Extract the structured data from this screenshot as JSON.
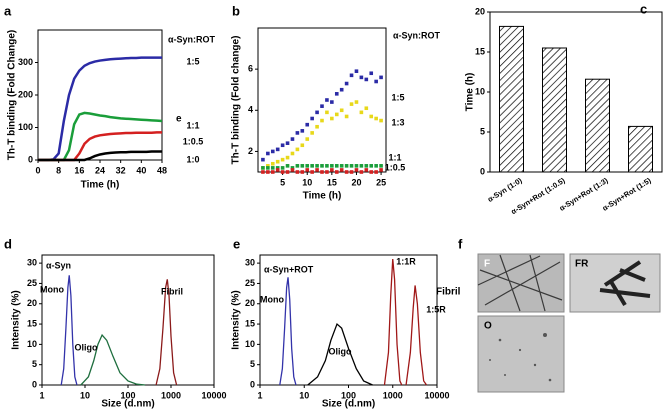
{
  "chart_data": [
    {
      "panel": "a",
      "type": "line",
      "title": "α-Syn:ROT",
      "x_label": "Time (h)",
      "y_label": "Th-T binding (Fold Change)",
      "x": [
        0,
        2,
        4,
        6,
        8,
        10,
        12,
        14,
        16,
        18,
        20,
        22,
        24,
        26,
        28,
        30,
        32,
        34,
        36,
        38,
        40,
        42,
        44,
        46,
        48
      ],
      "xlim": [
        0,
        48
      ],
      "xticks": [
        0,
        8,
        16,
        24,
        32,
        40,
        48
      ],
      "ylim": [
        0,
        400
      ],
      "yticks": [
        0,
        100,
        200,
        300
      ],
      "annotations": [
        "e"
      ],
      "series": [
        {
          "name": "1:5",
          "color": "#2b2ba6",
          "values": [
            0,
            0,
            0,
            2,
            20,
            120,
            200,
            250,
            275,
            290,
            298,
            303,
            306,
            308,
            310,
            311,
            312,
            313,
            314,
            314,
            315,
            315,
            315,
            315,
            315
          ]
        },
        {
          "name": "1:1",
          "color": "#1a9e3a",
          "values": [
            0,
            0,
            0,
            0,
            0,
            0,
            30,
            110,
            140,
            145,
            143,
            140,
            137,
            135,
            132,
            130,
            128,
            127,
            126,
            125,
            124,
            123,
            122,
            121,
            120
          ]
        },
        {
          "name": "1:0.5",
          "color": "#d42020",
          "values": [
            0,
            0,
            0,
            0,
            0,
            0,
            0,
            0,
            20,
            50,
            65,
            72,
            76,
            78,
            80,
            81,
            82,
            83,
            83,
            84,
            84,
            84,
            84,
            85,
            85
          ]
        },
        {
          "name": "1:0",
          "color": "#000000",
          "values": [
            0,
            0,
            0,
            0,
            0,
            0,
            0,
            0,
            0,
            0,
            5,
            12,
            17,
            20,
            22,
            23,
            24,
            24,
            25,
            25,
            25,
            25,
            26,
            26,
            26
          ]
        }
      ]
    },
    {
      "panel": "b",
      "type": "scatter",
      "title": "α-Syn:ROT",
      "x_label": "Time (h)",
      "y_label": "Th-T binding (Fold change)",
      "x": [
        1,
        2,
        3,
        4,
        5,
        6,
        7,
        8,
        9,
        10,
        11,
        12,
        13,
        14,
        15,
        16,
        17,
        18,
        19,
        20,
        21,
        22,
        23,
        24,
        25
      ],
      "xlim": [
        0,
        26
      ],
      "xticks": [
        5,
        10,
        15,
        20,
        25
      ],
      "ylim": [
        1,
        8
      ],
      "yticks": [
        2,
        4,
        6
      ],
      "series": [
        {
          "name": "1:5",
          "color": "#2b2ba6",
          "values": [
            1.6,
            1.9,
            2.0,
            2.1,
            2.3,
            2.4,
            2.6,
            2.9,
            3.0,
            3.3,
            3.6,
            3.9,
            4.2,
            4.5,
            4.4,
            4.8,
            5.0,
            5.3,
            5.7,
            5.9,
            5.6,
            5.5,
            5.8,
            5.4,
            5.6
          ]
        },
        {
          "name": "1:3",
          "color": "#e8d81a",
          "values": [
            1.2,
            1.3,
            1.4,
            1.5,
            1.6,
            1.7,
            1.9,
            2.1,
            2.3,
            2.6,
            2.9,
            3.2,
            3.5,
            3.9,
            3.6,
            3.8,
            4.0,
            3.7,
            4.3,
            4.4,
            3.9,
            4.1,
            3.7,
            3.6,
            3.5
          ]
        },
        {
          "name": "1:1",
          "color": "#1a9e3a",
          "values": [
            1.2,
            1.2,
            1.2,
            1.2,
            1.2,
            1.3,
            1.2,
            1.3,
            1.3,
            1.3,
            1.3,
            1.3,
            1.3,
            1.3,
            1.3,
            1.3,
            1.3,
            1.3,
            1.3,
            1.3,
            1.3,
            1.3,
            1.3,
            1.3,
            1.3
          ]
        },
        {
          "name": "1:0.5",
          "color": "#d42020",
          "values": [
            1.0,
            1.0,
            1.0,
            1.1,
            1.0,
            1.0,
            1.1,
            1.0,
            1.0,
            1.1,
            1.0,
            1.1,
            1.0,
            1.0,
            1.1,
            1.0,
            1.1,
            1.0,
            1.0,
            1.1,
            1.0,
            1.1,
            1.0,
            1.0,
            1.1
          ]
        }
      ]
    },
    {
      "panel": "c",
      "type": "bar",
      "y_label": "Time (h)",
      "categories": [
        "α-Syn (1:0)",
        "α-Syn+Rot (1:0.5)",
        "α-Syn+Rot (1:3)",
        "α-Syn+Rot (1:5)"
      ],
      "values": [
        18.2,
        15.5,
        11.6,
        5.7
      ],
      "color": "#000000",
      "ylim": [
        0,
        20
      ],
      "yticks": [
        0,
        5,
        10,
        15,
        20
      ]
    },
    {
      "panel": "d",
      "type": "line",
      "title": "α-Syn",
      "x_label": "Size (d.nm)",
      "y_label": "Intensity (%)",
      "xlog": true,
      "xlim": [
        1,
        10000
      ],
      "xticks": [
        1,
        10,
        100,
        1000,
        10000
      ],
      "ylim": [
        0,
        32
      ],
      "yticks": [
        0,
        5,
        10,
        15,
        20,
        25,
        30
      ],
      "series": [
        {
          "name": "Mono",
          "color": "#3333aa",
          "x": [
            2.8,
            3.2,
            3.6,
            4.0,
            4.3,
            4.7,
            5.2,
            5.8,
            6.5
          ],
          "values": [
            0,
            4,
            14,
            24,
            27,
            22,
            10,
            2,
            0
          ]
        },
        {
          "name": "Oligo",
          "color": "#1e6e3e",
          "x": [
            8,
            12,
            16,
            20,
            25,
            32,
            45,
            65,
            100,
            160,
            250
          ],
          "values": [
            0,
            2,
            6,
            10,
            12.3,
            11,
            7,
            3,
            1,
            0.2,
            0
          ]
        },
        {
          "name": "Fibril",
          "color": "#8b1a1a",
          "x": [
            450,
            550,
            650,
            750,
            820,
            900,
            1000,
            1150,
            1350
          ],
          "values": [
            0,
            4,
            14,
            24,
            26,
            22,
            12,
            3,
            0
          ]
        }
      ]
    },
    {
      "panel": "e",
      "type": "line",
      "title": "α-Syn+ROT",
      "x_label": "Size (d.nm)",
      "y_label": "Intensity (%)",
      "xlog": true,
      "xlim": [
        1,
        10000
      ],
      "xticks": [
        1,
        10,
        100,
        1000,
        10000
      ],
      "ylim": [
        0,
        32
      ],
      "yticks": [
        0,
        5,
        10,
        15,
        20,
        25,
        30
      ],
      "annotations": [
        "Fibril"
      ],
      "series": [
        {
          "name": "Mono",
          "color": "#3333aa",
          "x": [
            2.8,
            3.2,
            3.6,
            4.0,
            4.3,
            4.7,
            5.2,
            5.8,
            6.5
          ],
          "values": [
            0,
            4,
            14,
            24,
            26.5,
            21,
            9,
            2,
            0
          ]
        },
        {
          "name": "Oligo",
          "color": "#000000",
          "x": [
            12,
            20,
            30,
            40,
            55,
            70,
            100,
            150,
            220,
            350
          ],
          "values": [
            0,
            2,
            6,
            11,
            15,
            14,
            9,
            4,
            1,
            0
          ]
        },
        {
          "name": "1:1R",
          "color": "#a01818",
          "x": [
            650,
            800,
            900,
            1000,
            1100,
            1250,
            1450,
            1600
          ],
          "values": [
            0,
            8,
            22,
            31,
            26,
            10,
            1,
            0
          ]
        },
        {
          "name": "1:5R",
          "color": "#a01818",
          "x": [
            2000,
            2500,
            2900,
            3200,
            3600,
            4200,
            5000,
            5800
          ],
          "values": [
            0,
            8,
            19,
            24.5,
            20,
            8,
            1,
            0
          ]
        }
      ]
    }
  ],
  "figure_f": {
    "panel": "f",
    "images": [
      {
        "label": "F"
      },
      {
        "label": "FR"
      },
      {
        "label": "O"
      }
    ]
  }
}
